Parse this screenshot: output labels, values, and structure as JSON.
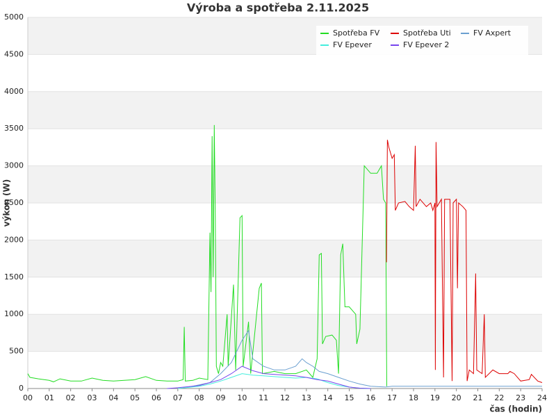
{
  "chart_data": {
    "type": "line",
    "title": "Výroba a spotřeba 2.11.2025",
    "x_label": "čas (hodin)",
    "y_label": "výkon (W)",
    "xlim": [
      0,
      24
    ],
    "xticks": [
      {
        "value": 0,
        "label": "00"
      },
      {
        "value": 1,
        "label": "01"
      },
      {
        "value": 2,
        "label": "02"
      },
      {
        "value": 3,
        "label": "03"
      },
      {
        "value": 4,
        "label": "04"
      },
      {
        "value": 5,
        "label": "05"
      },
      {
        "value": 6,
        "label": "06"
      },
      {
        "value": 7,
        "label": "07"
      },
      {
        "value": 8,
        "label": "08"
      },
      {
        "value": 9,
        "label": "09"
      },
      10,
      11,
      12,
      13,
      14,
      15,
      16,
      17,
      18,
      19,
      20,
      21,
      22,
      23,
      24
    ],
    "ylim": [
      0,
      5000
    ],
    "yticks": [
      0,
      500,
      1000,
      1500,
      2000,
      2500,
      3000,
      3500,
      4000,
      4500,
      5000
    ],
    "grid": true,
    "legend": "upper-right",
    "series": [
      {
        "name": "Spotřeba FV",
        "color": "#22dd22",
        "x": [
          0,
          0.1,
          0.5,
          1,
          1.2,
          1.5,
          2,
          2.5,
          3,
          3.5,
          4,
          4.5,
          5,
          5.5,
          6,
          6.5,
          7,
          7.25,
          7.3,
          7.35,
          7.7,
          8,
          8.4,
          8.5,
          8.55,
          8.6,
          8.65,
          8.7,
          8.75,
          8.8,
          8.9,
          9,
          9.1,
          9.3,
          9.35,
          9.6,
          9.7,
          9.9,
          10,
          10.05,
          10.3,
          10.4,
          10.8,
          10.9,
          10.95,
          11.5,
          12,
          12.5,
          13,
          13.3,
          13.5,
          13.6,
          13.7,
          13.75,
          13.9,
          14.2,
          14.4,
          14.5,
          14.6,
          14.7,
          14.8,
          15,
          15.3,
          15.35,
          15.5,
          15.7,
          16,
          16.3,
          16.5,
          16.6,
          16.7,
          16.75
        ],
        "values": [
          200,
          150,
          130,
          110,
          90,
          130,
          100,
          100,
          140,
          110,
          100,
          110,
          120,
          160,
          110,
          100,
          100,
          120,
          830,
          100,
          110,
          140,
          120,
          2100,
          1300,
          3400,
          1500,
          3550,
          2300,
          300,
          200,
          350,
          300,
          1000,
          300,
          1400,
          250,
          2300,
          2330,
          300,
          900,
          200,
          1350,
          1420,
          200,
          230,
          200,
          200,
          250,
          150,
          400,
          1800,
          1820,
          600,
          700,
          720,
          650,
          200,
          1800,
          1950,
          1100,
          1100,
          1000,
          600,
          800,
          3000,
          2900,
          2900,
          3000,
          2550,
          2500,
          30
        ]
      },
      {
        "name": "Spotřeba Uti",
        "color": "#dd0000",
        "x": [
          16.74,
          16.78,
          16.85,
          17,
          17.1,
          17.15,
          17.3,
          17.6,
          17.8,
          18,
          18.08,
          18.12,
          18.3,
          18.6,
          18.8,
          18.9,
          19,
          19.02,
          19.05,
          19.1,
          19.3,
          19.4,
          19.45,
          19.7,
          19.8,
          19.85,
          20,
          20.05,
          20.1,
          20.3,
          20.45,
          20.5,
          20.6,
          20.8,
          20.9,
          20.95,
          21.2,
          21.3,
          21.35,
          21.7,
          22,
          22.4,
          22.5,
          22.7,
          23,
          23.4,
          23.5,
          23.8,
          24
        ],
        "values": [
          1700,
          3350,
          3250,
          3100,
          3150,
          2400,
          2500,
          2520,
          2450,
          2400,
          3270,
          2450,
          2550,
          2450,
          2500,
          2400,
          2500,
          250,
          3320,
          2450,
          2550,
          150,
          2550,
          2550,
          100,
          2500,
          2550,
          1350,
          2500,
          2450,
          2400,
          100,
          250,
          200,
          1550,
          250,
          200,
          1000,
          150,
          250,
          200,
          200,
          230,
          200,
          100,
          120,
          190,
          100,
          80
        ]
      },
      {
        "name": "FV Axpert",
        "color": "#6a9fd0",
        "x": [
          7.5,
          8,
          8.5,
          9,
          9.5,
          10,
          10.3,
          10.5,
          11,
          11.5,
          12,
          12.5,
          12.8,
          13,
          13.3,
          13.6,
          14,
          14.5,
          15,
          15.5,
          16,
          16.7,
          17,
          24
        ],
        "values": [
          20,
          50,
          80,
          200,
          350,
          650,
          780,
          400,
          300,
          250,
          250,
          300,
          400,
          350,
          300,
          230,
          200,
          150,
          100,
          60,
          30,
          20,
          30,
          30
        ]
      },
      {
        "name": "FV Epever",
        "color": "#44eedd",
        "x": [
          7,
          8,
          8.5,
          9,
          9.5,
          10,
          10.5,
          11,
          12,
          12.5,
          13,
          13.5,
          14,
          14.5,
          15,
          15.5,
          16
        ],
        "values": [
          0,
          30,
          60,
          100,
          150,
          200,
          180,
          170,
          150,
          140,
          150,
          130,
          80,
          40,
          20,
          5,
          0
        ]
      },
      {
        "name": "FV Epever 2",
        "color": "#7744ee",
        "x": [
          6.5,
          7,
          8,
          8.5,
          9,
          9.5,
          10,
          10.5,
          11,
          12,
          12.5,
          13,
          13.5,
          14,
          14.5,
          15,
          15.5,
          16
        ],
        "values": [
          0,
          10,
          40,
          80,
          120,
          200,
          300,
          240,
          200,
          180,
          170,
          150,
          120,
          100,
          60,
          20,
          5,
          0
        ]
      }
    ]
  }
}
